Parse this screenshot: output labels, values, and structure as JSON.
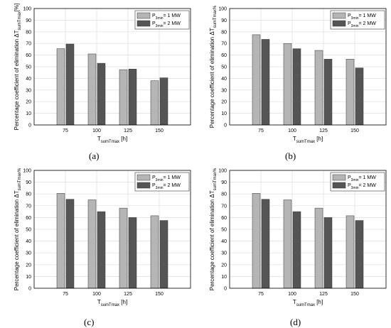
{
  "colors": {
    "series_1": "#b5b5b5",
    "series_2": "#555555",
    "grid": "#dddddd",
    "axis": "#000000"
  },
  "chart_data": [
    {
      "type": "bar",
      "panel_label": "(a)",
      "categories": [
        "75",
        "100",
        "125",
        "150"
      ],
      "series": [
        {
          "name": "P3min = 1 MW",
          "name_main": "P",
          "name_sub": "3min",
          "name_rest": "= 1 MW",
          "values": [
            65.5,
            61,
            47.5,
            38
          ]
        },
        {
          "name": "P3min = 2 MW",
          "name_main": "P",
          "name_sub": "3min",
          "name_rest": "= 2 MW",
          "values": [
            69.5,
            53,
            48,
            40.5
          ]
        }
      ],
      "xlabel": "TsumTmax [h]",
      "xlabel_main": "T",
      "xlabel_sub": "sumTmax",
      "xlabel_rest": " [h]",
      "ylabel": "Percentage coefficient of elimination ΔTsumTmax[%]",
      "ylabel_main": "Percentage coefficient of elimination ΔT",
      "ylabel_sub": "sumTmax",
      "ylabel_rest": "[%]",
      "yticks": [
        "0",
        "10",
        "20",
        "30",
        "40",
        "50",
        "60",
        "70",
        "80",
        "90",
        "100"
      ],
      "ylim": [
        0,
        100
      ],
      "grid": true,
      "legend": "top-right"
    },
    {
      "type": "bar",
      "panel_label": "(b)",
      "categories": [
        "75",
        "100",
        "125",
        "150"
      ],
      "series": [
        {
          "name": "P3min = 1 MW",
          "name_main": "P",
          "name_sub": "3min",
          "name_rest": "= 1 MW",
          "values": [
            77.5,
            70,
            64,
            56.5
          ]
        },
        {
          "name": "P3min = 2 MW",
          "name_main": "P",
          "name_sub": "3min",
          "name_rest": "= 2 MW",
          "values": [
            73.5,
            65.5,
            56.5,
            49
          ]
        }
      ],
      "xlabel": "TsumTmax [h]",
      "xlabel_main": "T",
      "xlabel_sub": "sumTmax",
      "xlabel_rest": " [h]",
      "ylabel": "Percentage coefficient of elimination ΔTsumTmax%",
      "ylabel_main": "Percentage coefficient of elimination ΔT",
      "ylabel_sub": "sumTmax%",
      "ylabel_rest": "",
      "yticks": [
        "0",
        "10",
        "20",
        "30",
        "40",
        "50",
        "60",
        "70",
        "80",
        "90",
        "100"
      ],
      "ylim": [
        0,
        100
      ],
      "grid": true,
      "legend": "top-right"
    },
    {
      "type": "bar",
      "panel_label": "(c)",
      "categories": [
        "75",
        "100",
        "125",
        "150"
      ],
      "series": [
        {
          "name": "P3min = 1 MW",
          "name_main": "P",
          "name_sub": "3min",
          "name_rest": "= 1 MW",
          "values": [
            80.5,
            75,
            68,
            61.5
          ]
        },
        {
          "name": "P3min = 2 MW",
          "name_main": "P",
          "name_sub": "3min",
          "name_rest": "= 2 MW",
          "values": [
            75.5,
            65,
            60,
            57.5
          ]
        }
      ],
      "xlabel": "TsumTmax [h]",
      "xlabel_main": "T",
      "xlabel_sub": "sumTmax",
      "xlabel_rest": " [h]",
      "ylabel": "Percentage coefficient of elimination ΔTsumTmax%",
      "ylabel_main": "Percentage coefficient of elimination ΔT",
      "ylabel_sub": "sumTmax%",
      "ylabel_rest": "",
      "yticks": [
        "0",
        "10",
        "20",
        "30",
        "40",
        "50",
        "60",
        "70",
        "80",
        "90",
        "100"
      ],
      "ylim": [
        0,
        100
      ],
      "grid": true,
      "legend": "top-right"
    },
    {
      "type": "bar",
      "panel_label": "(d)",
      "categories": [
        "75",
        "100",
        "125",
        "150"
      ],
      "series": [
        {
          "name": "P3min = 1 MW",
          "name_main": "P",
          "name_sub": "3min",
          "name_rest": "= 1 MW",
          "values": [
            80.5,
            75,
            68,
            61.5
          ]
        },
        {
          "name": "P3min = 2 MW",
          "name_main": "P",
          "name_sub": "3min",
          "name_rest": "= 2 MW",
          "values": [
            75.5,
            65,
            60,
            57.5
          ]
        }
      ],
      "xlabel": "TsumTmax [h]",
      "xlabel_main": "T",
      "xlabel_sub": "sumTmax",
      "xlabel_rest": " [h]",
      "ylabel": "Percentage coefficient of elimination ΔTsumTmax%",
      "ylabel_main": "Percentage coefficient of elimination ΔT",
      "ylabel_sub": "sumTmax%",
      "ylabel_rest": "",
      "yticks": [
        "0",
        "10",
        "20",
        "30",
        "40",
        "50",
        "60",
        "70",
        "80",
        "90",
        "100"
      ],
      "ylim": [
        0,
        100
      ],
      "grid": true,
      "legend": "top-right"
    }
  ]
}
